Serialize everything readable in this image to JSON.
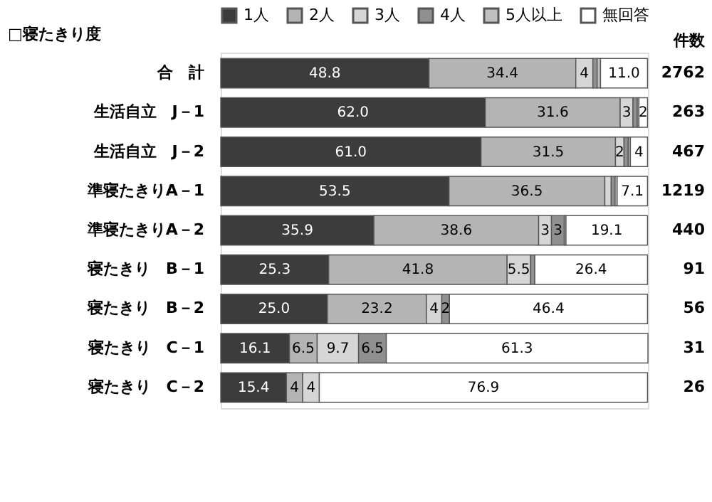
{
  "chart_data": {
    "type": "bar",
    "orientation": "horizontal",
    "stacked": true,
    "ylabel": "□寝たきり度",
    "legend": "top",
    "tick_labels": "y",
    "xlim": [
      0,
      100.1
    ],
    "categories": [
      "合　計",
      "生活自立　J－1",
      "生活自立　J－2",
      "準寝たきりA－1",
      "準寝たきりA－2",
      "寝たきり　B－1",
      "寝たきり　B－2",
      "寝たきり　C－1",
      "寝たきり　C－2"
    ],
    "series": [
      {
        "name": "1人",
        "color": "#3c3c3c",
        "values": [
          48.8,
          62.0,
          61.0,
          53.5,
          35.9,
          25.3,
          25.0,
          16.1,
          15.4
        ],
        "value_labels": [
          "48.8",
          "62.0",
          "61.0",
          "53.5",
          "35.9",
          "25.3",
          "25.0",
          "16.1",
          "15.4"
        ]
      },
      {
        "name": "2人",
        "color": "#b4b4b4",
        "values": [
          34.4,
          31.6,
          31.5,
          36.5,
          38.6,
          41.8,
          23.2,
          6.5,
          3.8
        ],
        "value_labels": [
          "34.4",
          "31.6",
          "31.5",
          "36.5",
          "38.6",
          "41.8",
          "23.2",
          "6.5",
          "4"
        ]
      },
      {
        "name": "3人",
        "color": "#d6d6d6",
        "values": [
          4,
          3,
          2,
          1.5,
          3,
          5.5,
          3.6,
          9.7,
          3.9
        ],
        "value_labels": [
          "4",
          "3",
          "2",
          null,
          "3",
          "5.5",
          "4",
          "9.7",
          "4"
        ]
      },
      {
        "name": "4人",
        "color": "#909090",
        "values": [
          1.0,
          1.0,
          1.0,
          0.9,
          3,
          1.0,
          1.8,
          6.5,
          null
        ],
        "value_labels": [
          null,
          null,
          null,
          null,
          "3",
          null,
          "2",
          "6.5",
          null
        ]
      },
      {
        "name": "5人以上",
        "color": "#c0c0c0",
        "values": [
          0.8,
          0.4,
          0.5,
          0.5,
          0.4,
          null,
          null,
          null,
          null
        ],
        "value_labels": [
          null,
          null,
          null,
          null,
          null,
          null,
          null,
          null,
          null
        ]
      },
      {
        "name": "無回答",
        "color": "#ffffff",
        "values": [
          11.0,
          2,
          4,
          7.1,
          19.1,
          26.4,
          46.4,
          61.3,
          76.9
        ],
        "value_labels": [
          "11.0",
          "2",
          "4",
          "7.1",
          "19.1",
          "26.4",
          "46.4",
          "61.3",
          "76.9"
        ]
      }
    ],
    "annotations": [
      "件数",
      "2762",
      "263",
      "467",
      "1219",
      "440",
      "91",
      "56",
      "31",
      "26"
    ]
  }
}
